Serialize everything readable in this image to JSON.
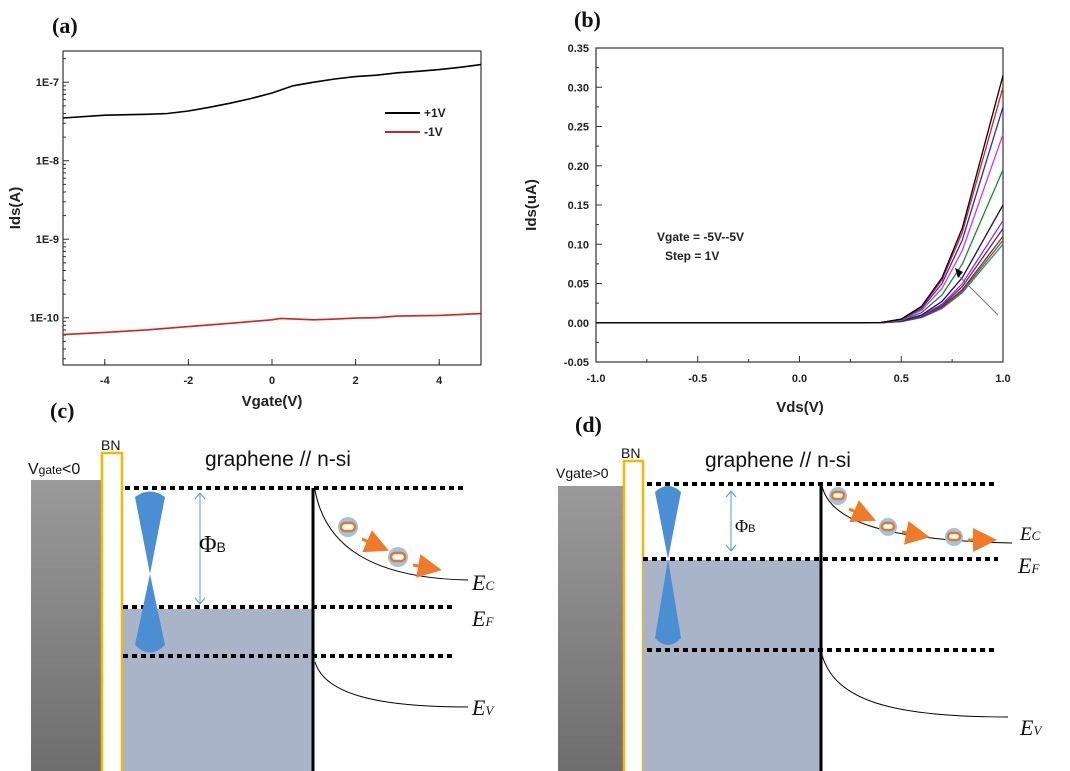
{
  "chart_data": [
    {
      "panel": "(a)",
      "type": "line",
      "xlabel": "Vgate(V)",
      "ylabel": "Ids(A)",
      "xlim": [
        -5,
        5
      ],
      "ylim": [
        2.5e-11,
        2.5e-07
      ],
      "yscale": "log",
      "xticks": [
        -4,
        -2,
        0,
        2,
        4
      ],
      "yticks": [
        {
          "value": 1e-07,
          "label": "1E-7"
        },
        {
          "value": 1e-08,
          "label": "1E-8"
        },
        {
          "value": 1e-09,
          "label": "1E-9"
        },
        {
          "value": 1e-10,
          "label": "1E-10"
        }
      ],
      "grid": false,
      "legend_position": "top-right",
      "series": [
        {
          "name": "+1V",
          "color": "#000000",
          "x": [
            -5,
            -4,
            -3,
            -2.5,
            -2,
            -1.5,
            -1,
            -0.5,
            0,
            0.5,
            1,
            1.5,
            2,
            2.5,
            3,
            3.5,
            4,
            4.5,
            5
          ],
          "y": [
            3.5e-08,
            3.8e-08,
            3.9e-08,
            4e-08,
            4.3e-08,
            4.8e-08,
            5.4e-08,
            6.2e-08,
            7.3e-08,
            9e-08,
            1e-07,
            1.1e-07,
            1.18e-07,
            1.23e-07,
            1.32e-07,
            1.38e-07,
            1.45e-07,
            1.55e-07,
            1.68e-07
          ]
        },
        {
          "name": "-1V",
          "color": "#d42020",
          "x": [
            -5,
            -4,
            -3,
            -2,
            -1,
            0,
            0.2,
            1,
            1.5,
            2,
            2.5,
            3,
            4,
            5
          ],
          "y": [
            6.1e-11,
            6.5e-11,
            7e-11,
            7.7e-11,
            8.5e-11,
            9.4e-11,
            9.8e-11,
            9.4e-11,
            9.6e-11,
            9.9e-11,
            1e-10,
            1.05e-10,
            1.07e-10,
            1.13e-10
          ]
        }
      ]
    },
    {
      "panel": "(b)",
      "type": "line",
      "xlabel": "Vds(V)",
      "ylabel": "Ids(uA)",
      "xlim": [
        -1.0,
        1.0
      ],
      "ylim": [
        -0.05,
        0.35
      ],
      "xticks": [
        "-1.0",
        "-0.5",
        "0.0",
        "0.5",
        "1.0"
      ],
      "yticks": [
        "-0.05",
        "0.00",
        "0.05",
        "0.10",
        "0.15",
        "0.20",
        "0.25",
        "0.30",
        "0.35"
      ],
      "grid": false,
      "annotation": [
        "Vgate = -5V--5V",
        "Step = 1V"
      ],
      "x": [
        -1.0,
        0.0,
        0.3,
        0.4,
        0.5,
        0.6,
        0.7,
        0.8,
        0.9,
        1.0
      ],
      "series": [
        {
          "color": "#000000",
          "values": [
            0,
            0,
            0,
            0.0003,
            0.0047,
            0.0209,
            0.0572,
            0.1207,
            0.2177,
            0.315
          ]
        },
        {
          "color": "#e02020",
          "values": [
            0,
            0,
            0,
            0.0003,
            0.0045,
            0.0199,
            0.0545,
            0.115,
            0.2074,
            0.3
          ]
        },
        {
          "color": "#1f2fd0",
          "values": [
            0,
            0,
            0,
            0.0003,
            0.0041,
            0.0182,
            0.0499,
            0.1054,
            0.1901,
            0.275
          ]
        },
        {
          "color": "#e030e0",
          "values": [
            0,
            0,
            0,
            0.0002,
            0.0036,
            0.0159,
            0.0436,
            0.092,
            0.1659,
            0.24
          ]
        },
        {
          "color": "#1a8a2a",
          "values": [
            0,
            0,
            0,
            0.0002,
            0.0029,
            0.0129,
            0.0354,
            0.0747,
            0.1348,
            0.195
          ]
        },
        {
          "color": "#101060",
          "values": [
            0,
            0,
            0,
            0.0001,
            0.0022,
            0.0099,
            0.0272,
            0.0575,
            0.1037,
            0.15
          ]
        },
        {
          "color": "#8a2be2",
          "values": [
            0,
            0,
            0,
            0.0001,
            0.002,
            0.0086,
            0.0236,
            0.0498,
            0.0899,
            0.13
          ]
        },
        {
          "color": "#6a1a8a",
          "values": [
            0,
            0,
            0,
            0.0001,
            0.0018,
            0.008,
            0.0218,
            0.046,
            0.0829,
            0.12
          ]
        },
        {
          "color": "#8b2a1a",
          "values": [
            0,
            0,
            0,
            0.0001,
            0.0016,
            0.0073,
            0.02,
            0.0422,
            0.076,
            0.11
          ]
        },
        {
          "color": "#6b6b1a",
          "values": [
            0,
            0,
            0,
            0.0001,
            0.0016,
            0.007,
            0.0191,
            0.0402,
            0.0726,
            0.105
          ]
        },
        {
          "color": "#2f7fb0",
          "values": [
            0,
            0,
            0,
            0.0001,
            0.0015,
            0.0066,
            0.0182,
            0.0383,
            0.0691,
            0.1
          ]
        }
      ]
    }
  ],
  "diagrams": {
    "c": {
      "label": "(c)",
      "bn": "BN",
      "gate_main": "V",
      "gate_sub": "gate",
      "gate_tail": "<0",
      "title": "graphene // n-si",
      "phi": "Φ",
      "phi_sub": "B",
      "ec": "E",
      "ec_sub": "C",
      "ef": "E",
      "ef_sub": "F",
      "ev": "E",
      "ev_sub": "V"
    },
    "d": {
      "label": "(d)",
      "bn": "BN",
      "gate": "Vgate>0",
      "title": "graphene // n-si",
      "phi": "Φ",
      "phi_sub": "B",
      "ec": "E",
      "ec_sub": "C",
      "ef": "E",
      "ef_sub": "F",
      "ev": "E",
      "ev_sub": "V"
    }
  },
  "colors": {
    "gate": "#8a8a8a",
    "bn_border": "#f5b800",
    "filled_band": "#a9b4c8",
    "dirac_cone": "#4a8fd4",
    "electron": "#e87722",
    "electron_halo": "#9cc3e8",
    "arrow": "#f07a28"
  }
}
